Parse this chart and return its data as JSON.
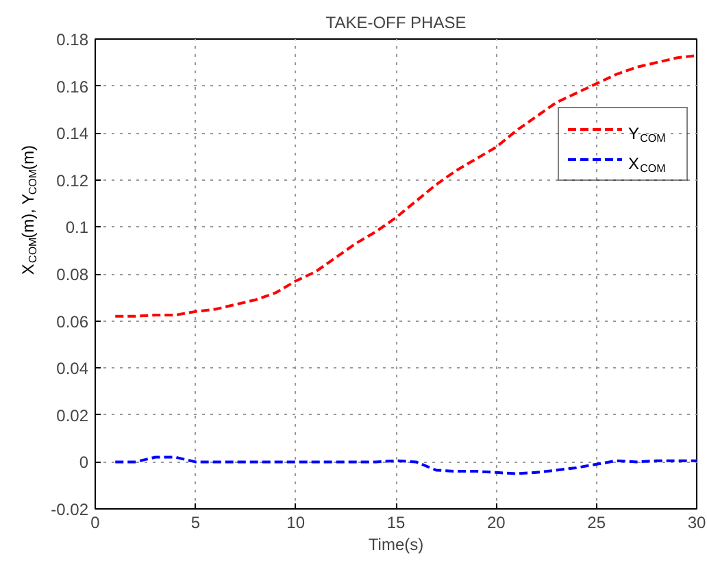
{
  "chart_data": {
    "type": "line",
    "title": "TAKE-OFF PHASE",
    "xlabel": "Time(s)",
    "ylabel": "X$_{COM}$(m), Y$_{COM}$(m)",
    "x": [
      1,
      2,
      3,
      4,
      5,
      6,
      7,
      8,
      9,
      10,
      11,
      12,
      13,
      14,
      15,
      16,
      17,
      18,
      19,
      20,
      21,
      22,
      23,
      24,
      25,
      26,
      27,
      28,
      29,
      30
    ],
    "series": [
      {
        "name": "Y$_{COM}$",
        "color": "#ff0000",
        "values": [
          0.062,
          0.062,
          0.0625,
          0.0625,
          0.064,
          0.065,
          0.067,
          0.069,
          0.072,
          0.077,
          0.081,
          0.087,
          0.093,
          0.098,
          0.104,
          0.111,
          0.118,
          0.124,
          0.129,
          0.134,
          0.141,
          0.147,
          0.153,
          0.157,
          0.161,
          0.165,
          0.168,
          0.17,
          0.172,
          0.173
        ]
      },
      {
        "name": "X$_{COM}$",
        "color": "#0000ff",
        "values": [
          0,
          0,
          0.002,
          0.002,
          0,
          0,
          0,
          0,
          0,
          0,
          0,
          0,
          0,
          0,
          0.0005,
          0,
          -0.0035,
          -0.004,
          -0.004,
          -0.0045,
          -0.005,
          -0.0045,
          -0.0035,
          -0.0025,
          -0.001,
          0.0005,
          0,
          0.0005,
          0.0005,
          0.0005
        ]
      }
    ],
    "xlim": [
      0,
      30
    ],
    "xticks": [
      0,
      5,
      10,
      15,
      20,
      25,
      30
    ],
    "ylim": [
      -0.02,
      0.18
    ],
    "yticks": [
      -0.02,
      0,
      0.02,
      0.04,
      0.06,
      0.08,
      0.1,
      0.12,
      0.14,
      0.16,
      0.18
    ],
    "grid": true,
    "legend": "top right",
    "line_style": "dashed",
    "marker": "none"
  }
}
